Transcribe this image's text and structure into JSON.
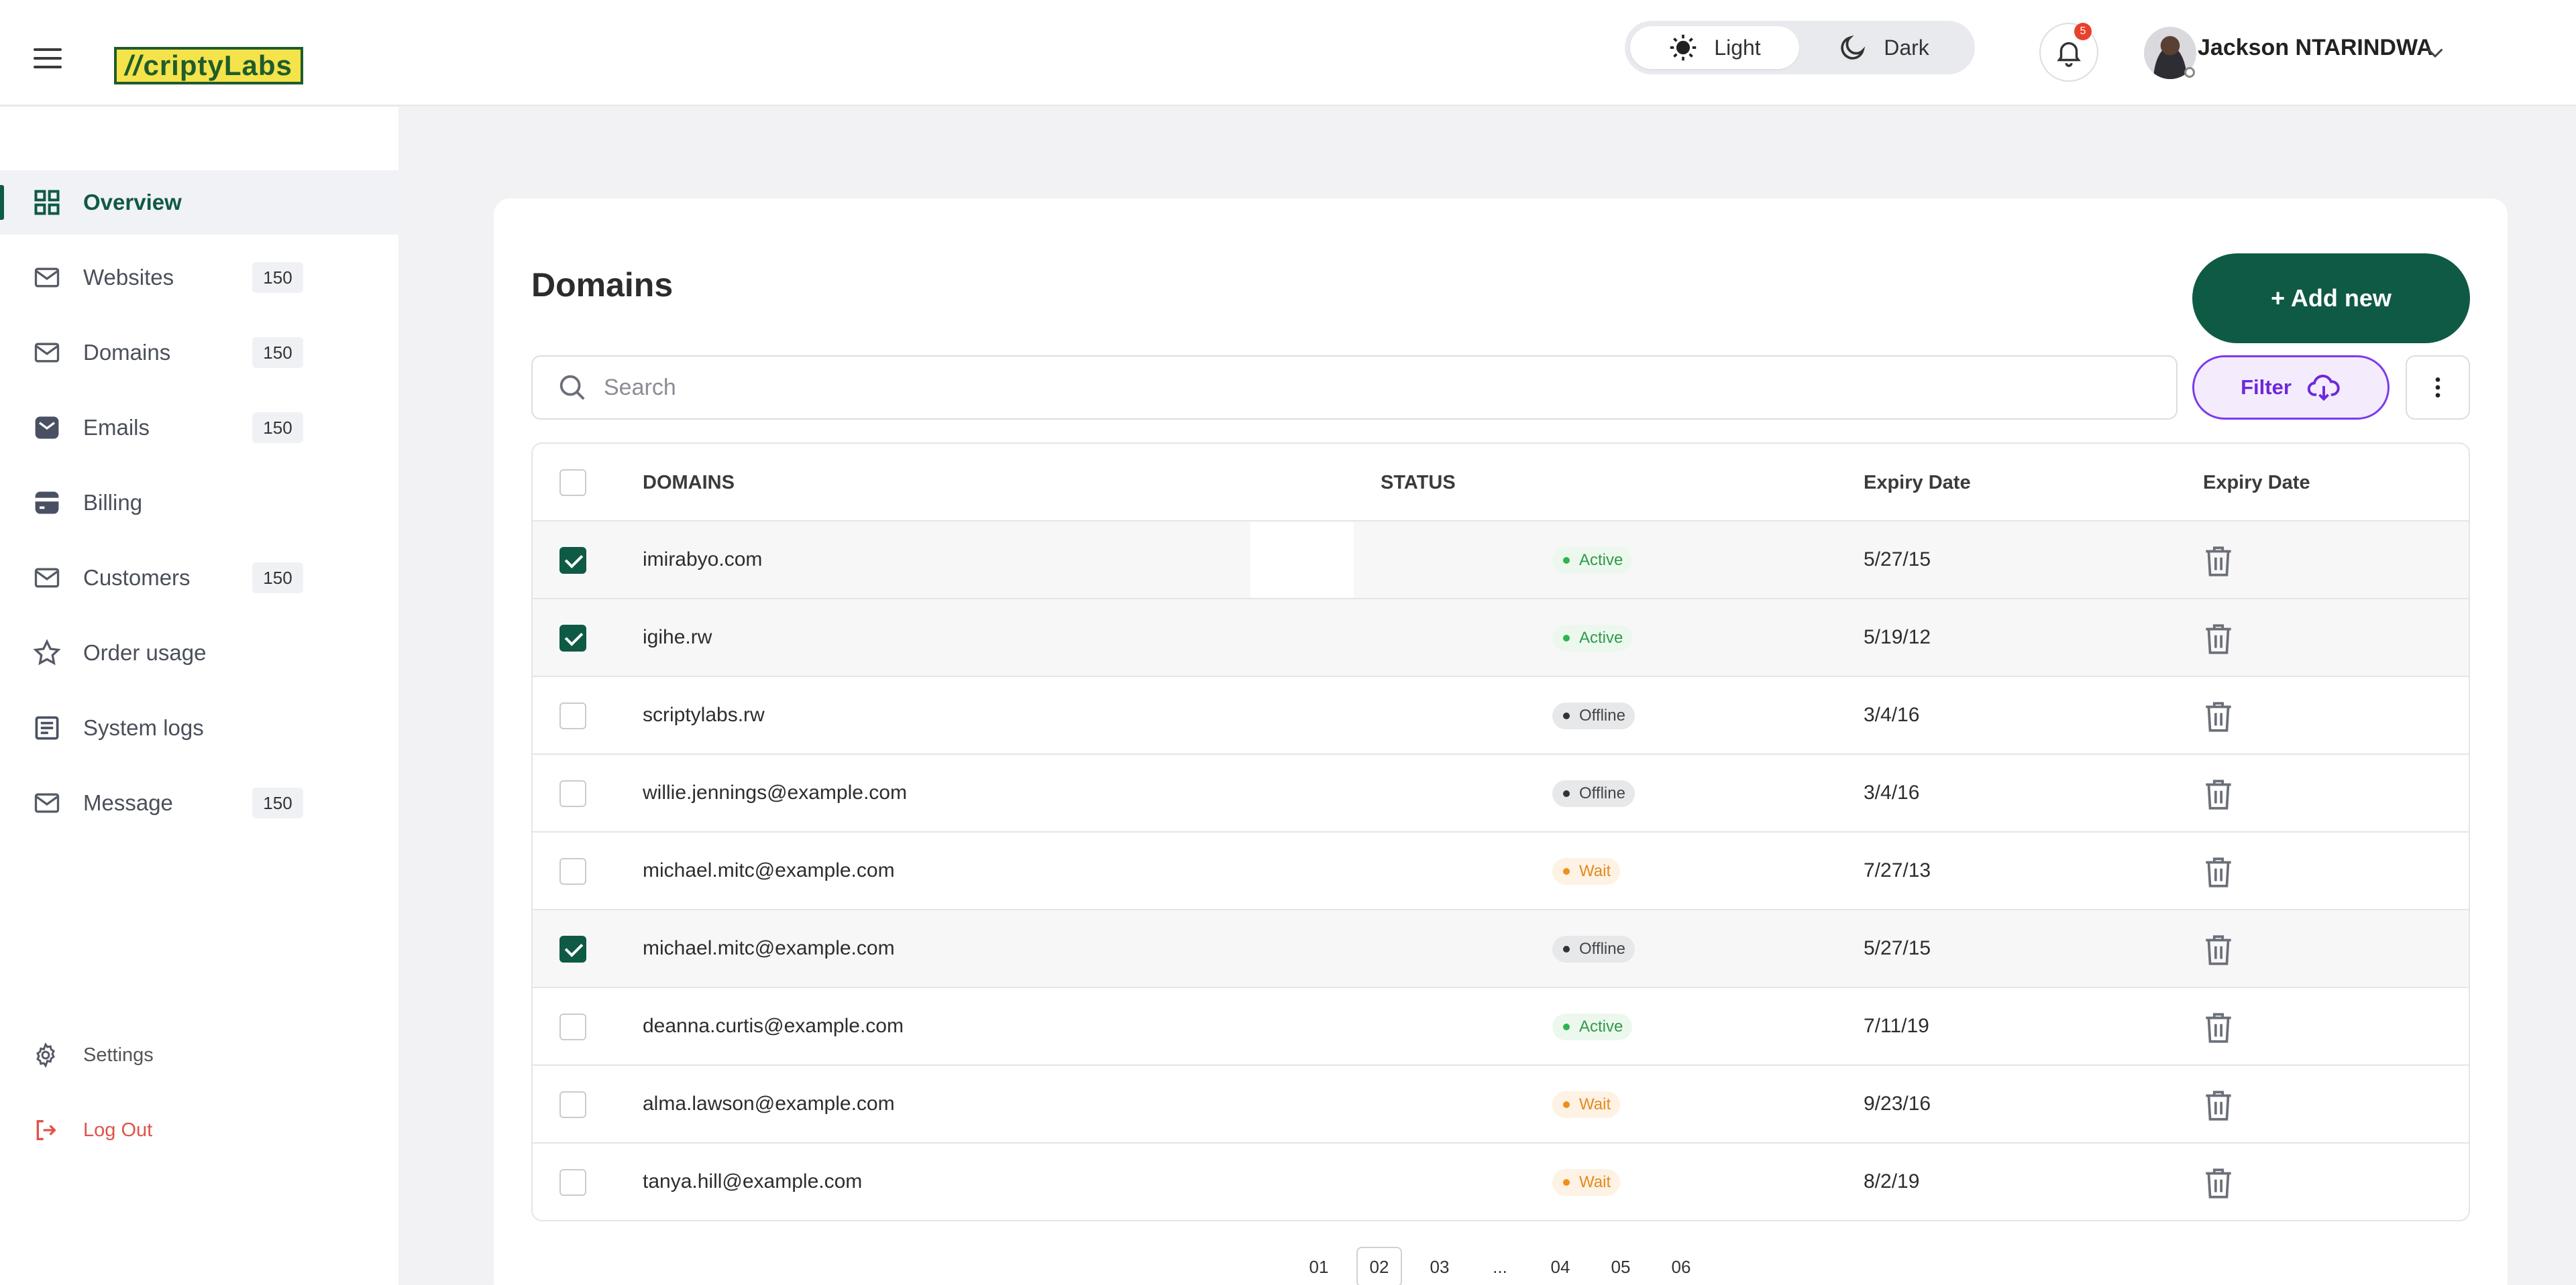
{
  "header": {
    "logo_text": "ScriptyLabs",
    "theme": {
      "light_label": "Light",
      "dark_label": "Dark",
      "selected": "Light"
    },
    "notifications_count": "5",
    "user_name": "Jackson NTARINDWA"
  },
  "sidebar": {
    "items": [
      {
        "label": "Overview",
        "icon": "grid-icon",
        "count": "",
        "active": true
      },
      {
        "label": "Websites",
        "icon": "mail-icon",
        "count": "150"
      },
      {
        "label": "Domains",
        "icon": "mail-icon",
        "count": "150"
      },
      {
        "label": "Emails",
        "icon": "mail-filled-icon",
        "count": "150"
      },
      {
        "label": "Billing",
        "icon": "wallet-icon",
        "count": ""
      },
      {
        "label": "Customers",
        "icon": "mail-icon",
        "count": "150"
      },
      {
        "label": "Order usage",
        "icon": "star-icon",
        "count": ""
      },
      {
        "label": "System logs",
        "icon": "document-icon",
        "count": ""
      },
      {
        "label": "Message",
        "icon": "mail-icon",
        "count": "150"
      }
    ],
    "settings_label": "Settings",
    "logout_label": "Log Out"
  },
  "main": {
    "title": "Domains",
    "add_button": "+ Add new",
    "search_placeholder": "Search",
    "filter_label": "Filter",
    "columns": [
      "DOMAINS",
      "STATUS",
      "Expiry Date",
      "Expiry Date"
    ],
    "rows": [
      {
        "domain": "imirabyo.com",
        "status": "Active",
        "date": "5/27/15",
        "checked": true
      },
      {
        "domain": "igihe.rw",
        "status": "Active",
        "date": "5/19/12",
        "checked": true
      },
      {
        "domain": "scriptylabs.rw",
        "status": "Offline",
        "date": "3/4/16",
        "checked": false
      },
      {
        "domain": "willie.jennings@example.com",
        "status": "Offline",
        "date": "3/4/16",
        "checked": false
      },
      {
        "domain": "michael.mitc@example.com",
        "status": "Wait",
        "date": "7/27/13",
        "checked": false
      },
      {
        "domain": "michael.mitc@example.com",
        "status": "Offline",
        "date": "5/27/15",
        "checked": true
      },
      {
        "domain": "deanna.curtis@example.com",
        "status": "Active",
        "date": "7/11/19",
        "checked": false
      },
      {
        "domain": "alma.lawson@example.com",
        "status": "Wait",
        "date": "9/23/16",
        "checked": false
      },
      {
        "domain": "tanya.hill@example.com",
        "status": "Wait",
        "date": "8/2/19",
        "checked": false
      }
    ],
    "pagination": [
      "01",
      "02",
      "03",
      "...",
      "04",
      "05",
      "06"
    ],
    "current_page": "02"
  },
  "colors": {
    "brand": "#0f5a45",
    "filter_accent": "#7c3aed",
    "active": "#2fb34f",
    "wait": "#ef8f1b",
    "logout": "#e0524a"
  }
}
